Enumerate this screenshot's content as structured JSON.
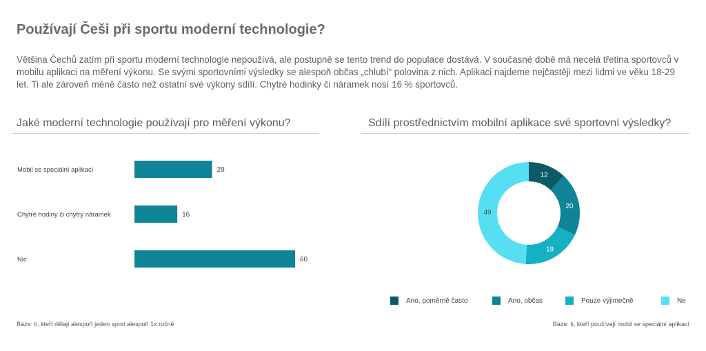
{
  "header": {
    "title": "Používají Češi při sportu moderní technologie?",
    "intro": "Většina Čechů zatím při sportu moderní technologie nepoužívá, ale postupně se tento trend do populace dostává. V současné době má necelá třetina sportovců v mobilu aplikaci na měření výkonu. Se svými sportovními výsledky se alespoň občas „chlubí“ polovina z nich. Aplikaci najdeme nejčastěji mezi lidmi ve věku 18-29 let. Ti ale zároveň méně často než ostatní své výkony sdílí. Chytré hodinky či náramek nosí 16 % sportovců."
  },
  "left_panel": {
    "heading": "Jaké moderní technologie používají pro měření výkonu?",
    "note": "Báze: ti, kteří dělají alespoň jeden sport alespoň 1x ročně"
  },
  "right_panel": {
    "heading": "Sdílí prostřednictvím mobilní aplikace své sportovní výsledky?",
    "note": "Báze: ti, kteří používají mobil se speciální aplikací"
  },
  "chart_data": [
    {
      "type": "bar",
      "orientation": "horizontal",
      "categories": [
        "Mobil se speciální aplikací",
        "Chytré hodiny či chytrý náramek",
        "Nic"
      ],
      "values": [
        29,
        16,
        60
      ],
      "title": "Jaké moderní technologie používají pro měření výkonu?",
      "xlim": [
        0,
        60
      ],
      "color": "#0e8496",
      "grid": false
    },
    {
      "type": "pie",
      "donut": true,
      "title": "Sdílí prostřednictvím mobilní aplikace své sportovní výsledky?",
      "labels": [
        "Ano, poměrně často",
        "Ano, občas",
        "Pouze výjimečně",
        "Ne"
      ],
      "values": [
        12,
        20,
        19,
        49
      ],
      "colors": [
        "#0b5a66",
        "#0e8496",
        "#14b0c4",
        "#56dff2"
      ],
      "legend": "bottom"
    }
  ]
}
